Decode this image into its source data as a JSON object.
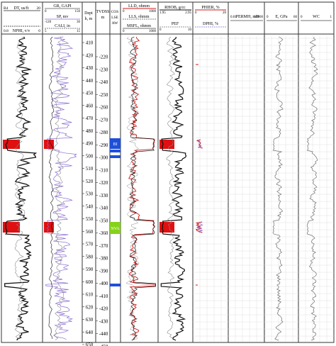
{
  "header": {
    "track1": {
      "rows": [
        {
          "left": "B4",
          "name": "DT, us/ft",
          "right": "20"
        },
        {
          "left": "",
          "name": "",
          "right": ""
        },
        {
          "left": "0.8",
          "name": "NPHI, v/v",
          "right": "0"
        }
      ]
    },
    "track2": {
      "rows": [
        {
          "left": "0",
          "name": "GR, GAPI",
          "right": "150"
        },
        {
          "left": "-120",
          "name": "SP, mv",
          "right": "30"
        },
        {
          "left": "5",
          "name": "CALI, in",
          "right": "15"
        }
      ]
    },
    "depth": {
      "label1": "Dept",
      "label2": "h, m"
    },
    "tvd": {
      "label1": "TVDSS",
      "label2": "m"
    },
    "col": {
      "label1": "COS",
      "label2": "LSE",
      "label3": "AW"
    },
    "track5": {
      "rows": [
        {
          "left": "0",
          "name": "LLD, ohmm",
          "right": "1000"
        },
        {
          "left": "",
          "name": "LLS, ohmm",
          "right": ""
        },
        {
          "left": "0",
          "name": "MSFL, ohmm",
          "right": "1000"
        }
      ]
    },
    "track6": {
      "rows": [
        {
          "left": "1.95",
          "name": "RHOB, g/cc",
          "right": "2.95"
        },
        {
          "left": "",
          "name": "",
          "right": ""
        },
        {
          "left": "0",
          "name": "PEF",
          "right": "10"
        }
      ]
    },
    "track7": {
      "rows": [
        {
          "left": "0",
          "name": "PHIER, %",
          "right": "20"
        },
        {
          "left": "",
          "name": "",
          "right": ""
        },
        {
          "left": "",
          "name": "DPHI, %",
          "right": ""
        }
      ]
    },
    "track8": {
      "rows": [
        {
          "left": "0.01",
          "name": "PERMH, mD",
          "right": "10000"
        }
      ]
    },
    "track9": {
      "rows": [
        {
          "left": "0",
          "name": "E, GPa",
          "right": "60"
        }
      ]
    },
    "track10": {
      "rows": [
        {
          "left": "0",
          "name": "WC",
          "right": "1"
        }
      ]
    }
  },
  "depth_ticks": [
    "410",
    "420",
    "430",
    "440",
    "450",
    "460",
    "470",
    "480",
    "490",
    "500",
    "510",
    "520",
    "530",
    "540",
    "550",
    "560",
    "570",
    "580",
    "590",
    "600",
    "610",
    "620",
    "630",
    "640",
    "650"
  ],
  "tvd_ticks": [
    "-220",
    "-230",
    "-240",
    "-250",
    "-260",
    "-270",
    "-280",
    "-290",
    "-300",
    "-310",
    "-320",
    "-330",
    "-340",
    "-350",
    "-360",
    "-370",
    "-380",
    "-390",
    "-400",
    "-410",
    "-420",
    "-430",
    "-440",
    "-450",
    "-460"
  ],
  "zones": [
    {
      "label": "BI",
      "color": "#1f4fd8"
    },
    {
      "label": "",
      "color": "#1f4fd8"
    },
    {
      "label": "",
      "color": "#1f4fd8"
    },
    {
      "label": "NVA",
      "color": "#86d21b"
    },
    {
      "label": "",
      "color": "#1f4fd8"
    }
  ],
  "colors": {
    "frame": "#333333",
    "curve_dark": "#111111",
    "curve_grey": "#8a8a8a",
    "curve_purple": "#8a6bd1",
    "curve_red": "#d01818",
    "fill_red": "#e01010",
    "grid": "#d8d8d8",
    "zone_blue": "#1f4fd8",
    "zone_green": "#86d21b"
  }
}
